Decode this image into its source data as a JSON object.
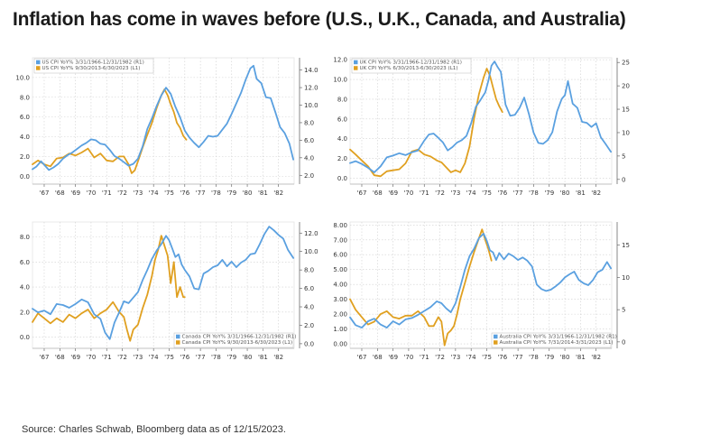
{
  "title": "Inflation has come in waves before (U.S., U.K., Canada, and Australia)",
  "source": "Source: Charles Schwab, Bloomberg data as of 12/15/2023.",
  "colors": {
    "blue": "#5aa0e0",
    "orange": "#e0a020",
    "grid": "#cfcfcf",
    "axis": "#555555"
  },
  "chart_data": [
    {
      "id": "us",
      "type": "line",
      "x_tick_labels": [
        "'67",
        "'68",
        "'69",
        "'70",
        "'71",
        "'72",
        "'73",
        "'74",
        "'75",
        "'76",
        "'77",
        "'78",
        "'79",
        "'80",
        "'81",
        "'82"
      ],
      "xlim": [
        1966.25,
        1983.0
      ],
      "left_axis": {
        "ticks": [
          "0.0",
          "2.0",
          "4.0",
          "6.0",
          "8.0",
          "10.0"
        ],
        "values": [
          0,
          2,
          4,
          6,
          8,
          10
        ],
        "ylim": [
          -0.8,
          12.0
        ]
      },
      "right_axis": {
        "ticks": [
          "2.0",
          "4.0",
          "6.0",
          "8.0",
          "10.0",
          "12.0",
          "14.0"
        ],
        "values": [
          2,
          4,
          6,
          8,
          10,
          12,
          14
        ],
        "ylim": [
          1.0,
          15.4
        ]
      },
      "legend_position": "top-left",
      "series": [
        {
          "name": "US CPI YoY% 3/31/1966-12/31/1982 (R1)",
          "color": "blue",
          "axis": "right",
          "x": [
            1966.25,
            1966.5,
            1966.8,
            1967.0,
            1967.3,
            1967.6,
            1967.9,
            1968.2,
            1968.5,
            1968.8,
            1969.1,
            1969.4,
            1969.7,
            1970.0,
            1970.3,
            1970.6,
            1970.9,
            1971.2,
            1971.5,
            1971.8,
            1972.1,
            1972.4,
            1972.7,
            1973.0,
            1973.3,
            1973.6,
            1973.9,
            1974.2,
            1974.5,
            1974.8,
            1975.1,
            1975.4,
            1975.7,
            1976.0,
            1976.3,
            1976.6,
            1976.9,
            1977.2,
            1977.5,
            1977.8,
            1978.1,
            1978.4,
            1978.7,
            1979.0,
            1979.3,
            1979.6,
            1979.9,
            1980.2,
            1980.4,
            1980.6,
            1980.9,
            1981.2,
            1981.5,
            1981.8,
            1982.1,
            1982.4,
            1982.7,
            1982.95
          ],
          "y": [
            2.7,
            3.0,
            3.6,
            3.2,
            2.6,
            2.9,
            3.3,
            3.9,
            4.3,
            4.6,
            5.0,
            5.4,
            5.7,
            6.1,
            6.0,
            5.6,
            5.5,
            4.9,
            4.2,
            3.9,
            3.5,
            3.1,
            3.3,
            3.9,
            5.3,
            7.3,
            8.5,
            9.9,
            11.1,
            12.0,
            11.3,
            9.8,
            8.6,
            7.1,
            6.3,
            5.7,
            5.2,
            5.8,
            6.5,
            6.4,
            6.5,
            7.2,
            7.9,
            9.0,
            10.2,
            11.4,
            12.9,
            14.2,
            14.5,
            13.0,
            12.5,
            10.9,
            10.8,
            9.2,
            7.5,
            6.8,
            5.6,
            3.8
          ]
        },
        {
          "name": "US CPI YoY% 9/30/2013-6/30/2023 (L1)",
          "color": "orange",
          "axis": "left",
          "x": [
            1966.25,
            1966.6,
            1967.0,
            1967.4,
            1967.8,
            1968.2,
            1968.6,
            1969.0,
            1969.4,
            1969.8,
            1970.2,
            1970.6,
            1971.0,
            1971.4,
            1971.8,
            1972.1,
            1972.4,
            1972.6,
            1972.8,
            1973.0,
            1973.3,
            1973.6,
            1973.9,
            1974.2,
            1974.5,
            1974.7,
            1974.9,
            1975.1,
            1975.3,
            1975.5,
            1975.7,
            1975.9,
            1976.1
          ],
          "y": [
            1.2,
            1.6,
            1.2,
            1.0,
            1.8,
            1.9,
            2.3,
            2.1,
            2.4,
            2.8,
            1.9,
            2.3,
            1.6,
            1.5,
            2.0,
            2.0,
            1.2,
            0.3,
            0.6,
            1.5,
            2.9,
            4.2,
            5.4,
            6.9,
            8.2,
            8.8,
            8.2,
            7.3,
            6.5,
            5.4,
            4.9,
            4.1,
            3.7
          ]
        }
      ]
    },
    {
      "id": "uk",
      "type": "line",
      "x_tick_labels": [
        "'67",
        "'68",
        "'69",
        "'70",
        "'71",
        "'72",
        "'73",
        "'74",
        "'75",
        "'76",
        "'77",
        "'78",
        "'79",
        "'80",
        "'81",
        "'82"
      ],
      "xlim": [
        1966.25,
        1983.0
      ],
      "left_axis": {
        "ticks": [
          "0.0",
          "2.0",
          "4.0",
          "6.0",
          "8.0",
          "10.0",
          "12.0"
        ],
        "values": [
          0,
          2,
          4,
          6,
          8,
          10,
          12
        ],
        "ylim": [
          -0.6,
          12.2
        ]
      },
      "right_axis": {
        "ticks": [
          "0",
          "5",
          "10",
          "15",
          "20",
          "25"
        ],
        "values": [
          0,
          5,
          10,
          15,
          20,
          25
        ],
        "ylim": [
          -1.0,
          26.0
        ]
      },
      "legend_position": "top-left",
      "series": [
        {
          "name": "UK CPI YoY% 3/31/1966-12/31/1982 (R1)",
          "color": "blue",
          "axis": "right",
          "x": [
            1966.25,
            1966.6,
            1967.0,
            1967.4,
            1967.8,
            1968.2,
            1968.6,
            1969.0,
            1969.4,
            1969.8,
            1970.2,
            1970.6,
            1971.0,
            1971.3,
            1971.6,
            1971.9,
            1972.2,
            1972.5,
            1972.8,
            1973.1,
            1973.4,
            1973.7,
            1974.0,
            1974.3,
            1974.6,
            1974.9,
            1975.1,
            1975.3,
            1975.5,
            1975.7,
            1975.9,
            1976.2,
            1976.5,
            1976.8,
            1977.1,
            1977.4,
            1977.7,
            1978.0,
            1978.3,
            1978.6,
            1978.9,
            1979.2,
            1979.5,
            1979.8,
            1980.0,
            1980.2,
            1980.5,
            1980.8,
            1981.1,
            1981.4,
            1981.7,
            1982.0,
            1982.3,
            1982.6,
            1982.95
          ],
          "y": [
            3.5,
            3.9,
            3.3,
            2.5,
            1.5,
            2.8,
            4.7,
            5.1,
            5.6,
            5.2,
            5.8,
            6.2,
            8.3,
            9.6,
            9.8,
            8.9,
            7.9,
            6.2,
            6.9,
            7.9,
            8.4,
            9.3,
            12.0,
            15.5,
            17.0,
            18.6,
            21.0,
            24.3,
            25.2,
            24.0,
            23.0,
            16.0,
            13.6,
            13.8,
            15.3,
            17.5,
            14.0,
            10.0,
            7.8,
            7.6,
            8.4,
            10.1,
            14.5,
            17.2,
            18.0,
            21.0,
            16.2,
            15.3,
            12.3,
            12.1,
            11.2,
            12.0,
            9.0,
            7.6,
            5.9
          ]
        },
        {
          "name": "UK CPI YoY% 6/30/2013-6/30/2023 (L1)",
          "color": "orange",
          "axis": "left",
          "x": [
            1966.25,
            1966.6,
            1967.0,
            1967.4,
            1967.8,
            1968.2,
            1968.6,
            1969.0,
            1969.4,
            1969.8,
            1970.2,
            1970.6,
            1971.0,
            1971.4,
            1971.8,
            1972.1,
            1972.4,
            1972.7,
            1973.0,
            1973.3,
            1973.6,
            1973.9,
            1974.2,
            1974.5,
            1974.8,
            1975.0,
            1975.2,
            1975.4,
            1975.6,
            1975.8,
            1976.0
          ],
          "y": [
            2.9,
            2.4,
            1.8,
            1.2,
            0.3,
            0.2,
            0.7,
            0.8,
            0.9,
            1.5,
            2.7,
            2.9,
            2.4,
            2.2,
            1.8,
            1.6,
            1.1,
            0.6,
            0.8,
            0.6,
            1.5,
            3.2,
            6.1,
            8.5,
            10.2,
            11.1,
            10.4,
            9.2,
            8.0,
            7.3,
            6.7
          ]
        }
      ]
    },
    {
      "id": "canada",
      "type": "line",
      "x_tick_labels": [
        "'67",
        "'68",
        "'69",
        "'70",
        "'71",
        "'72",
        "'73",
        "'74",
        "'75",
        "'76",
        "'77",
        "'78",
        "'79",
        "'80",
        "'81",
        "'82"
      ],
      "xlim": [
        1966.25,
        1983.0
      ],
      "left_axis": {
        "ticks": [
          "0.0",
          "2.0",
          "4.0",
          "6.0",
          "8.0"
        ],
        "values": [
          0,
          2,
          4,
          6,
          8
        ],
        "ylim": [
          -0.9,
          9.2
        ]
      },
      "right_axis": {
        "ticks": [
          "0.0",
          "2.0",
          "4.0",
          "6.0",
          "8.0",
          "10.0",
          "12.0"
        ],
        "values": [
          0,
          2,
          4,
          6,
          8,
          10,
          12
        ],
        "ylim": [
          -0.5,
          13.2
        ]
      },
      "legend_position": "bottom-right",
      "series": [
        {
          "name": "Canada CPI YoY% 3/31/1966-12/31/1982 (R1)",
          "color": "blue",
          "axis": "right",
          "x": [
            1966.25,
            1966.6,
            1967.0,
            1967.4,
            1967.8,
            1968.2,
            1968.6,
            1969.0,
            1969.4,
            1969.8,
            1970.2,
            1970.6,
            1970.9,
            1971.2,
            1971.5,
            1971.8,
            1972.1,
            1972.4,
            1972.7,
            1973.0,
            1973.3,
            1973.6,
            1973.9,
            1974.2,
            1974.5,
            1974.8,
            1975.0,
            1975.2,
            1975.4,
            1975.6,
            1975.8,
            1976.0,
            1976.3,
            1976.6,
            1976.9,
            1977.2,
            1977.5,
            1977.8,
            1978.1,
            1978.4,
            1978.7,
            1979.0,
            1979.3,
            1979.6,
            1979.9,
            1980.2,
            1980.5,
            1980.8,
            1981.1,
            1981.4,
            1981.7,
            1982.0,
            1982.3,
            1982.6,
            1982.95
          ],
          "y": [
            3.8,
            3.4,
            3.6,
            3.2,
            4.3,
            4.2,
            3.9,
            4.3,
            4.8,
            4.5,
            3.2,
            2.7,
            1.2,
            0.5,
            2.3,
            3.4,
            4.6,
            4.4,
            5.0,
            5.6,
            6.9,
            8.0,
            9.2,
            10.1,
            10.8,
            11.7,
            11.2,
            10.3,
            9.4,
            9.7,
            8.6,
            8.0,
            7.3,
            6.0,
            5.9,
            7.6,
            7.9,
            8.3,
            8.5,
            9.1,
            8.4,
            8.9,
            8.3,
            8.8,
            9.1,
            9.7,
            9.8,
            10.8,
            11.9,
            12.7,
            12.3,
            11.8,
            11.4,
            10.2,
            9.3
          ]
        },
        {
          "name": "Canada CPI YoY% 9/30/2013-6/30/2023 (L1)",
          "color": "orange",
          "axis": "left",
          "x": [
            1966.25,
            1966.6,
            1967.0,
            1967.4,
            1967.8,
            1968.2,
            1968.6,
            1969.0,
            1969.4,
            1969.8,
            1970.2,
            1970.6,
            1971.0,
            1971.4,
            1971.8,
            1972.1,
            1972.3,
            1972.5,
            1972.7,
            1973.0,
            1973.3,
            1973.6,
            1973.9,
            1974.1,
            1974.3,
            1974.5,
            1974.7,
            1974.9,
            1975.1,
            1975.3,
            1975.5,
            1975.7,
            1975.9,
            1976.0
          ],
          "y": [
            1.2,
            1.9,
            1.5,
            1.1,
            1.5,
            1.2,
            1.8,
            1.5,
            1.9,
            2.2,
            1.5,
            1.9,
            2.2,
            2.8,
            2.0,
            1.6,
            0.6,
            -0.3,
            0.6,
            1.0,
            2.3,
            3.4,
            4.9,
            6.2,
            7.0,
            8.1,
            7.3,
            6.5,
            4.3,
            6.0,
            3.2,
            4.0,
            3.2,
            3.2
          ]
        }
      ]
    },
    {
      "id": "australia",
      "type": "line",
      "x_tick_labels": [
        "'67",
        "'68",
        "'69",
        "'70",
        "'71",
        "'72",
        "'73",
        "'74",
        "'75",
        "'76",
        "'77",
        "'78",
        "'79",
        "'80",
        "'81",
        "'82"
      ],
      "xlim": [
        1966.25,
        1983.0
      ],
      "left_axis": {
        "ticks": [
          "0.00",
          "1.00",
          "2.00",
          "3.00",
          "4.00",
          "5.00",
          "6.00",
          "7.00",
          "8.00"
        ],
        "values": [
          0,
          1,
          2,
          3,
          4,
          5,
          6,
          7,
          8
        ],
        "ylim": [
          -0.3,
          8.2
        ]
      },
      "right_axis": {
        "ticks": [
          "0",
          "5",
          "10",
          "15"
        ],
        "values": [
          0,
          5,
          10,
          15
        ],
        "ylim": [
          -1.0,
          18.6
        ]
      },
      "legend_position": "bottom-right",
      "series": [
        {
          "name": "Australia CPI YoY% 3/31/1966-12/31/1982 (R1)",
          "color": "blue",
          "axis": "right",
          "x": [
            1966.25,
            1966.6,
            1967.0,
            1967.4,
            1967.8,
            1968.2,
            1968.6,
            1969.0,
            1969.4,
            1969.8,
            1970.2,
            1970.6,
            1971.0,
            1971.4,
            1971.8,
            1972.1,
            1972.4,
            1972.7,
            1973.0,
            1973.3,
            1973.6,
            1973.9,
            1974.2,
            1974.5,
            1974.8,
            1975.0,
            1975.2,
            1975.4,
            1975.6,
            1975.8,
            1976.1,
            1976.4,
            1976.7,
            1977.0,
            1977.3,
            1977.6,
            1977.9,
            1978.2,
            1978.5,
            1978.8,
            1979.1,
            1979.4,
            1979.7,
            1980.0,
            1980.3,
            1980.6,
            1980.9,
            1981.2,
            1981.5,
            1981.8,
            1982.1,
            1982.4,
            1982.7,
            1982.95
          ],
          "y": [
            3.8,
            2.6,
            2.2,
            3.2,
            3.6,
            2.7,
            2.2,
            3.2,
            2.7,
            3.5,
            3.7,
            4.2,
            4.8,
            5.4,
            6.3,
            6.0,
            5.2,
            4.6,
            6.0,
            8.5,
            11.2,
            13.3,
            14.5,
            16.1,
            16.8,
            15.7,
            14.2,
            13.9,
            12.7,
            13.8,
            12.8,
            13.7,
            13.3,
            12.7,
            13.1,
            12.6,
            11.7,
            8.9,
            8.2,
            7.9,
            8.1,
            8.6,
            9.2,
            10.0,
            10.5,
            10.9,
            9.6,
            9.1,
            8.8,
            9.6,
            10.8,
            11.2,
            12.4,
            11.4
          ]
        },
        {
          "name": "Australia CPI YoY% 7/31/2014-3/31/2023 (L1)",
          "color": "orange",
          "axis": "left",
          "x": [
            1966.25,
            1966.6,
            1967.0,
            1967.4,
            1967.8,
            1968.2,
            1968.6,
            1969.0,
            1969.4,
            1969.8,
            1970.2,
            1970.6,
            1971.0,
            1971.3,
            1971.6,
            1971.9,
            1972.1,
            1972.3,
            1972.5,
            1972.7,
            1972.9,
            1973.1,
            1973.3,
            1973.6,
            1973.9,
            1974.2,
            1974.5,
            1974.7,
            1974.9,
            1975.1,
            1975.3
          ],
          "y": [
            3.0,
            2.3,
            1.8,
            1.3,
            1.5,
            2.0,
            2.2,
            1.8,
            1.7,
            1.9,
            1.9,
            2.2,
            1.8,
            1.2,
            1.2,
            1.8,
            1.5,
            -0.1,
            0.7,
            0.9,
            1.2,
            2.0,
            3.0,
            4.1,
            5.2,
            6.2,
            7.1,
            7.7,
            7.0,
            6.4,
            5.6
          ]
        }
      ]
    }
  ]
}
